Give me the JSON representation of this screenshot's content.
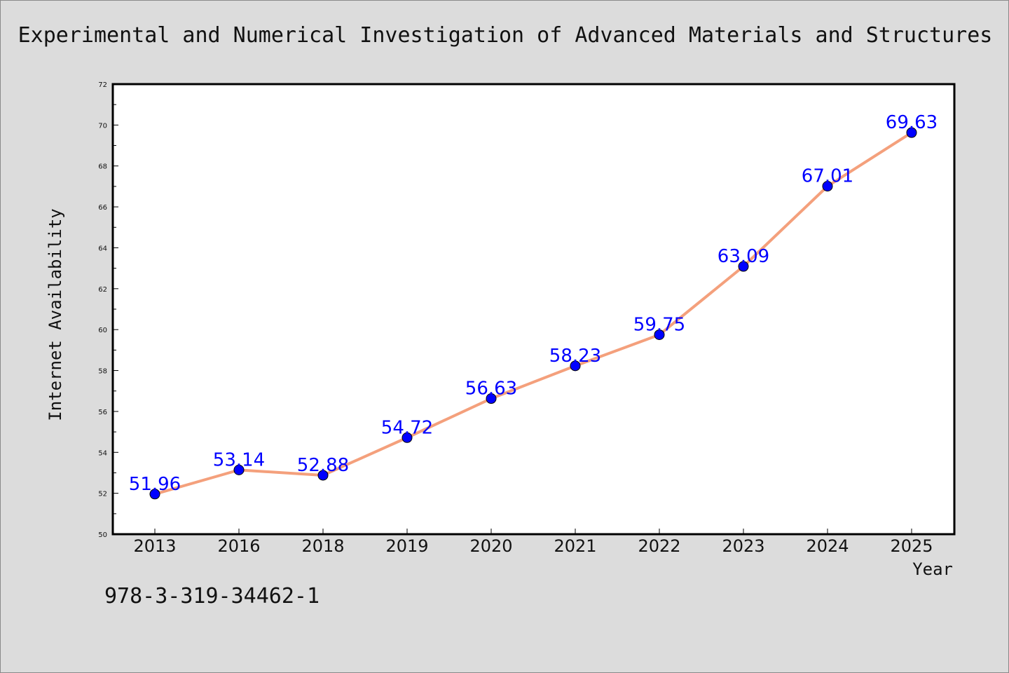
{
  "footnote": "978-3-319-34462-1",
  "colors": {
    "background": "#dcdcdc",
    "plot_background": "#ffffff",
    "line": "#f4a07c",
    "marker": "#0000ff",
    "data_label": "#0000ff",
    "axis": "#000000"
  },
  "chart_data": {
    "type": "line",
    "title": "Experimental and Numerical Investigation of Advanced Materials and Structures",
    "xlabel": "Year",
    "ylabel": "Internet Availability",
    "categories": [
      "2013",
      "2016",
      "2018",
      "2019",
      "2020",
      "2021",
      "2022",
      "2023",
      "2024",
      "2025"
    ],
    "series": [
      {
        "values": [
          51.96,
          53.14,
          52.88,
          54.72,
          56.63,
          58.23,
          59.75,
          63.09,
          67.01,
          69.63
        ],
        "data_labels": [
          "51.96",
          "53.14",
          "52.88",
          "54.72",
          "56.63",
          "58.23",
          "59.75",
          "63.09",
          "67.01",
          "69.63"
        ]
      }
    ],
    "ylim": [
      50,
      72
    ],
    "yticks": [
      "50",
      "52",
      "54",
      "56",
      "58",
      "60",
      "62",
      "64",
      "66",
      "68",
      "70",
      "72"
    ],
    "grid": false,
    "legend": "none",
    "marker": "circle"
  }
}
